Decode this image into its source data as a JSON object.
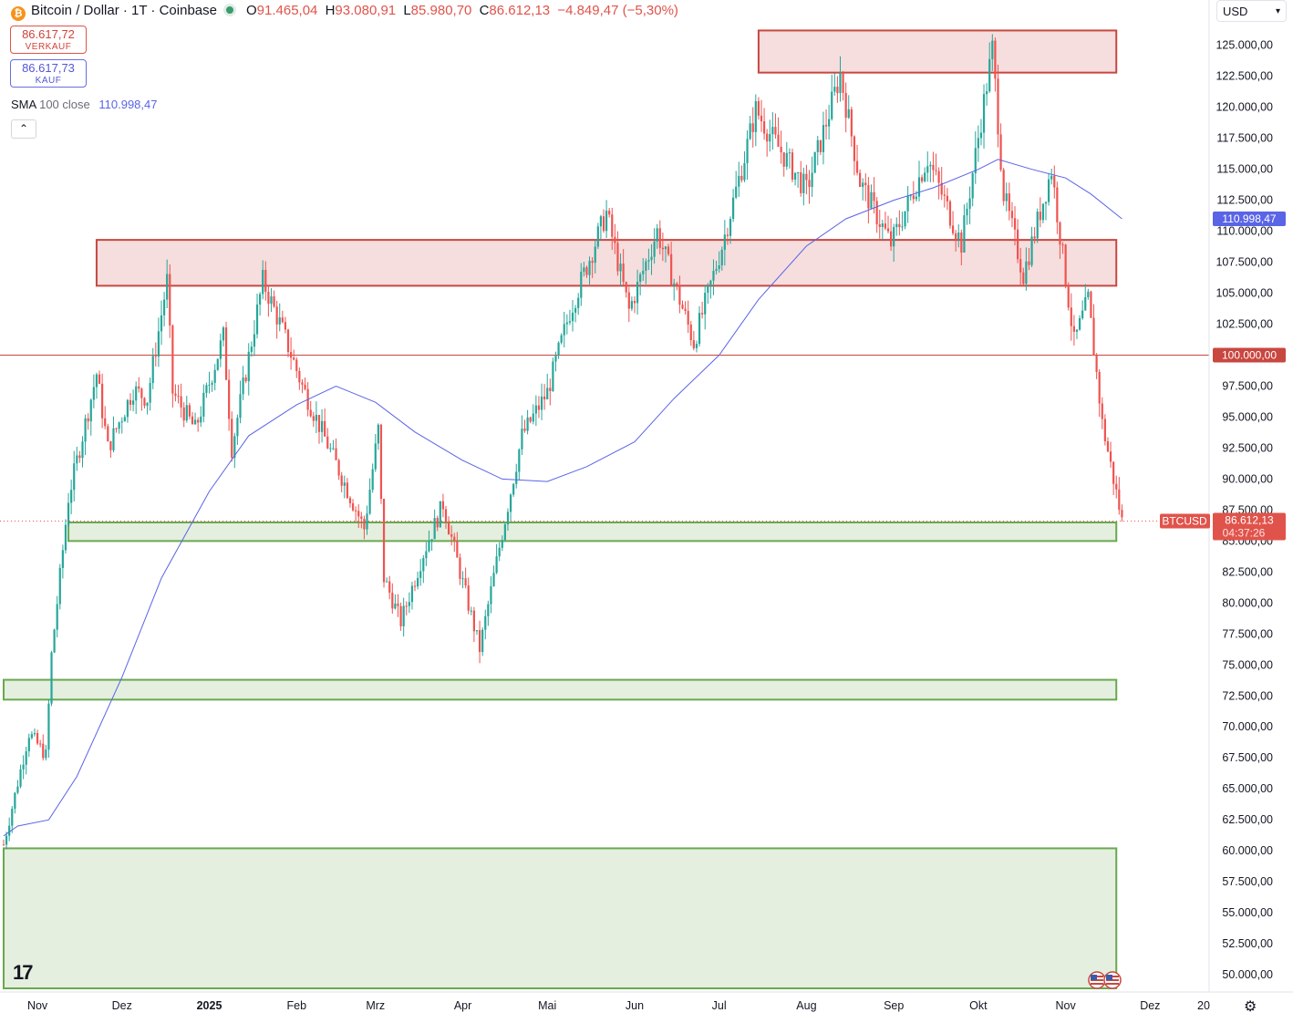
{
  "header": {
    "symbol": "Bitcoin / Dollar · 1T · Coinbase",
    "open_label": "O",
    "open": "91.465,04",
    "high_label": "H",
    "high": "93.080,91",
    "low_label": "L",
    "low": "85.980,70",
    "close_label": "C",
    "close": "86.612,13",
    "change": "−4.849,47 (−5,30%)"
  },
  "sell_box": {
    "price": "86.617,72",
    "label": "VERKAUF"
  },
  "buy_box": {
    "price": "86.617,73",
    "label": "KAUF"
  },
  "indicator": {
    "name": "SMA",
    "params": "100 close",
    "value": "110.998,47"
  },
  "currency": "USD",
  "price_tag": {
    "symbol": "BTCUSD",
    "price": "86.612,13",
    "countdown": "04:37:26"
  },
  "colors": {
    "up": "#26a69a",
    "down": "#ef5350",
    "sma": "#5a64e6",
    "red_zone": "#c84740",
    "green_zone": "#6aa84f"
  },
  "chart_data": {
    "type": "candlestick",
    "title": "Bitcoin / Dollar · 1T · Coinbase",
    "ylim": [
      48900,
      126600
    ],
    "y_ticks": [
      50000,
      52500,
      55000,
      57500,
      60000,
      62500,
      65000,
      67500,
      70000,
      72500,
      75000,
      77500,
      80000,
      82500,
      85000,
      87500,
      90000,
      92500,
      95000,
      97500,
      100000,
      102500,
      105000,
      107500,
      110000,
      112500,
      115000,
      117500,
      120000,
      122500,
      125000
    ],
    "y_tick_labels": [
      "50.000,00",
      "52.500,00",
      "55.000,00",
      "57.500,00",
      "60.000,00",
      "62.500,00",
      "65.000,00",
      "67.500,00",
      "70.000,00",
      "72.500,00",
      "75.000,00",
      "77.500,00",
      "80.000,00",
      "82.500,00",
      "85.000,00",
      "87.500,00",
      "90.000,00",
      "92.500,00",
      "95.000,00",
      "97.500,00",
      "100.000,00",
      "102.500,00",
      "105.000,00",
      "107.500,00",
      "110.000,00",
      "112.500,00",
      "115.000,00",
      "117.500,00",
      "120.000,00",
      "122.500,00",
      "125.000,00"
    ],
    "x_range": [
      "2024-10-20",
      "2025-12-20"
    ],
    "x_ticks": [
      {
        "date": "2024-11-01",
        "label": "Nov"
      },
      {
        "date": "2024-12-01",
        "label": "Dez"
      },
      {
        "date": "2025-01-01",
        "label": "2025",
        "bold": true
      },
      {
        "date": "2025-02-01",
        "label": "Feb"
      },
      {
        "date": "2025-03-01",
        "label": "Mrz"
      },
      {
        "date": "2025-04-01",
        "label": "Apr"
      },
      {
        "date": "2025-05-01",
        "label": "Mai"
      },
      {
        "date": "2025-06-01",
        "label": "Jun"
      },
      {
        "date": "2025-07-01",
        "label": "Jul"
      },
      {
        "date": "2025-08-01",
        "label": "Aug"
      },
      {
        "date": "2025-09-01",
        "label": "Sep"
      },
      {
        "date": "2025-10-01",
        "label": "Okt"
      },
      {
        "date": "2025-11-01",
        "label": "Nov"
      },
      {
        "date": "2025-12-01",
        "label": "Dez"
      },
      {
        "date": "2025-12-20",
        "label": "20"
      }
    ],
    "close_path": [
      [
        "2024-10-20",
        60500
      ],
      [
        "2024-10-29",
        69500
      ],
      [
        "2024-11-04",
        67700
      ],
      [
        "2024-11-06",
        75800
      ],
      [
        "2024-11-12",
        88500
      ],
      [
        "2024-11-22",
        98500
      ],
      [
        "2024-11-26",
        92500
      ],
      [
        "2024-12-05",
        97200
      ],
      [
        "2024-12-10",
        96500
      ],
      [
        "2024-12-17",
        106000
      ],
      [
        "2024-12-19",
        97000
      ],
      [
        "2024-12-27",
        94000
      ],
      [
        "2025-01-06",
        101500
      ],
      [
        "2025-01-09",
        92500
      ],
      [
        "2025-01-20",
        106000
      ],
      [
        "2025-01-27",
        102000
      ],
      [
        "2025-02-03",
        97500
      ],
      [
        "2025-02-25",
        86000
      ],
      [
        "2025-03-02",
        94000
      ],
      [
        "2025-03-04",
        82000
      ],
      [
        "2025-03-10",
        78500
      ],
      [
        "2025-03-18",
        84000
      ],
      [
        "2025-03-25",
        88000
      ],
      [
        "2025-03-31",
        82500
      ],
      [
        "2025-04-07",
        76300
      ],
      [
        "2025-04-14",
        84500
      ],
      [
        "2025-04-22",
        93500
      ],
      [
        "2025-05-01",
        97000
      ],
      [
        "2025-05-09",
        103500
      ],
      [
        "2025-05-22",
        111500
      ],
      [
        "2025-05-30",
        103600
      ],
      [
        "2025-06-09",
        110000
      ],
      [
        "2025-06-22",
        101000
      ],
      [
        "2025-07-02",
        108800
      ],
      [
        "2025-07-10",
        116000
      ],
      [
        "2025-07-14",
        119800
      ],
      [
        "2025-07-20",
        117500
      ],
      [
        "2025-08-01",
        113300
      ],
      [
        "2025-08-13",
        122700
      ],
      [
        "2025-08-20",
        114000
      ],
      [
        "2025-08-31",
        109000
      ],
      [
        "2025-09-13",
        115900
      ],
      [
        "2025-09-25",
        109000
      ],
      [
        "2025-10-06",
        124700
      ],
      [
        "2025-10-10",
        113000
      ],
      [
        "2025-10-17",
        106500
      ],
      [
        "2025-10-27",
        115000
      ],
      [
        "2025-11-04",
        101000
      ],
      [
        "2025-11-09",
        104500
      ],
      [
        "2025-11-14",
        94500
      ],
      [
        "2025-11-21",
        86612
      ]
    ],
    "sma_100": [
      [
        "2024-10-20",
        61200
      ],
      [
        "2024-10-25",
        62000
      ],
      [
        "2024-11-05",
        62500
      ],
      [
        "2024-11-15",
        66000
      ],
      [
        "2024-12-01",
        74000
      ],
      [
        "2024-12-15",
        82000
      ],
      [
        "2025-01-01",
        89000
      ],
      [
        "2025-01-15",
        93500
      ],
      [
        "2025-02-01",
        96000
      ],
      [
        "2025-02-15",
        97500
      ],
      [
        "2025-03-01",
        96200
      ],
      [
        "2025-03-15",
        93800
      ],
      [
        "2025-04-01",
        91500
      ],
      [
        "2025-04-15",
        90000
      ],
      [
        "2025-05-01",
        89800
      ],
      [
        "2025-05-15",
        91000
      ],
      [
        "2025-06-01",
        93000
      ],
      [
        "2025-06-15",
        96500
      ],
      [
        "2025-07-01",
        100000
      ],
      [
        "2025-07-15",
        104500
      ],
      [
        "2025-08-01",
        108800
      ],
      [
        "2025-08-15",
        111000
      ],
      [
        "2025-09-01",
        112500
      ],
      [
        "2025-09-15",
        113500
      ],
      [
        "2025-10-01",
        115000
      ],
      [
        "2025-10-08",
        115800
      ],
      [
        "2025-10-20",
        115000
      ],
      [
        "2025-11-01",
        114300
      ],
      [
        "2025-11-10",
        113000
      ],
      [
        "2025-11-21",
        110998
      ]
    ],
    "red_zones": [
      {
        "x0": "2025-07-15",
        "x1": "2025-11-19",
        "y0": 122800,
        "y1": 126200
      },
      {
        "x0": "2024-11-22",
        "x1": "2025-11-19",
        "y0": 105600,
        "y1": 109300
      }
    ],
    "green_zones": [
      {
        "x0": "2024-11-12",
        "x1": "2025-11-19",
        "y0": 85000,
        "y1": 86500
      },
      {
        "x0": "2024-10-20",
        "x1": "2025-11-19",
        "y0": 72200,
        "y1": 73800
      },
      {
        "x0": "2024-10-20",
        "x1": "2025-11-19",
        "y0": 48900,
        "y1": 60200
      }
    ],
    "horizontal_lines": [
      {
        "value": 100000,
        "label": "100.000,00"
      }
    ],
    "last_close": 86612.13,
    "sma_value_label": "110.998,47"
  }
}
